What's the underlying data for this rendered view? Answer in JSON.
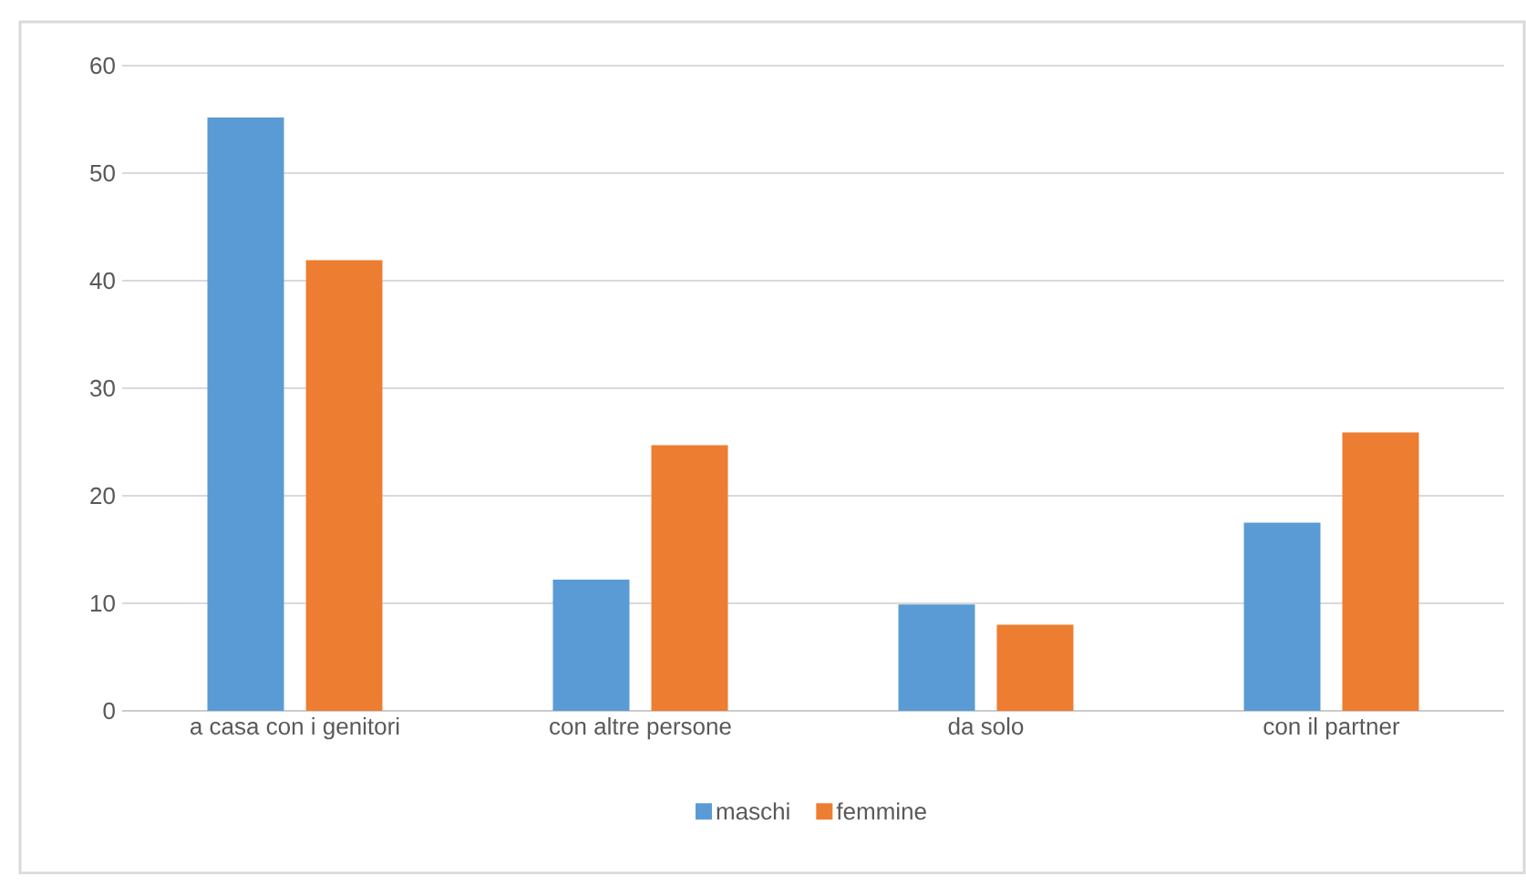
{
  "chart_data": {
    "type": "bar",
    "categories": [
      "a casa con i genitori",
      "con altre persone",
      "da solo",
      "con il partner"
    ],
    "series": [
      {
        "name": "maschi",
        "color": "#5b9bd5",
        "values": [
          55.2,
          12.2,
          9.9,
          17.5
        ]
      },
      {
        "name": "femmine",
        "color": "#ed7d31",
        "values": [
          41.9,
          24.7,
          8.0,
          25.9
        ]
      }
    ],
    "ylim": [
      0,
      60
    ],
    "yticks": [
      0,
      10,
      20,
      30,
      40,
      50,
      60
    ],
    "grid": "y",
    "legend": "bottom"
  }
}
